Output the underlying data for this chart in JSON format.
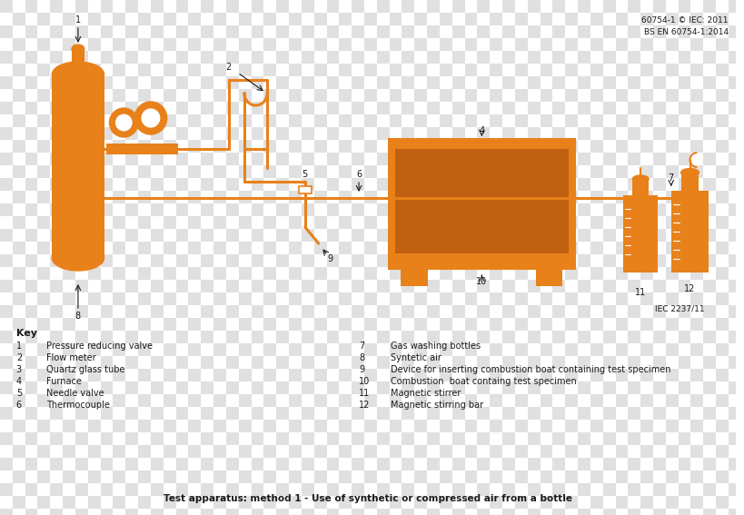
{
  "orange": "#E8811A",
  "black": "#1a1a1a",
  "white": "#ffffff",
  "check_light": "#f0f0f0",
  "check_dark": "#e0e0e0",
  "title_ref": "60754-1 © IEC: 2011\nBS EN 60754-1:2014",
  "caption": "Test apparatus: method 1 - Use of synthetic or compressed air from a bottle",
  "key_title": "Key",
  "legend_left": [
    [
      "1",
      "Pressure reducing valve"
    ],
    [
      "2",
      "Flow meter"
    ],
    [
      "3",
      "Quartz glass tube"
    ],
    [
      "4",
      "Furnace"
    ],
    [
      "5",
      "Needle valve"
    ],
    [
      "6",
      "Thermocouple"
    ]
  ],
  "legend_right": [
    [
      "7",
      "Gas washing bottles"
    ],
    [
      "8",
      "Syntetic air"
    ],
    [
      "9",
      "Device for inserting combustion boat containing test specimen"
    ],
    [
      "10",
      "Combustion  boat containg test specimen"
    ],
    [
      "11",
      "Magnetic stirrer"
    ],
    [
      "12",
      "Magnetic stirring bar"
    ]
  ]
}
